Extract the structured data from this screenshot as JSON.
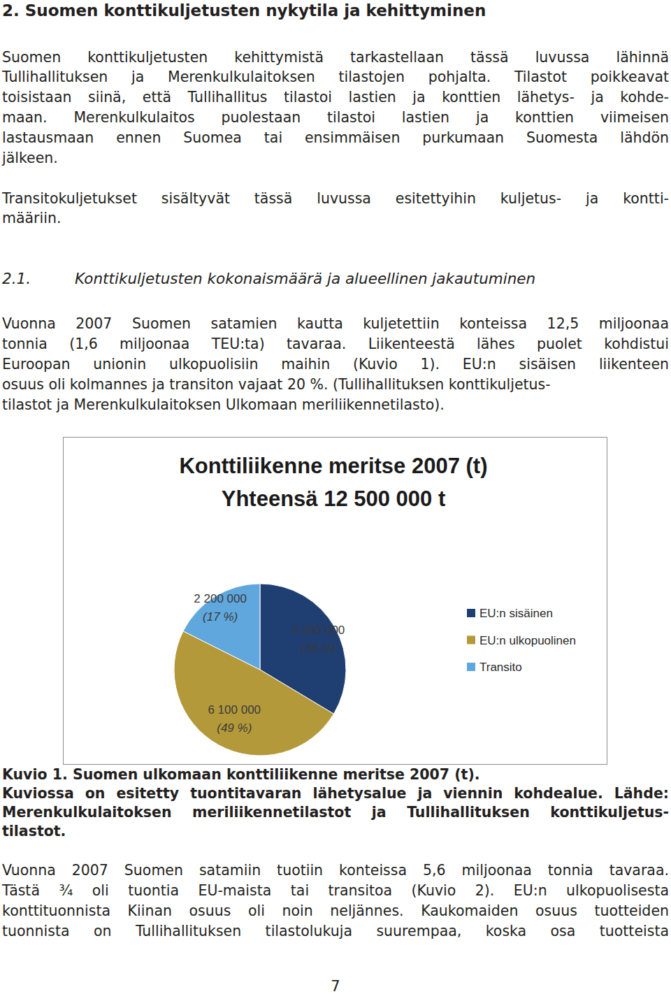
{
  "section_heading": "2. Suomen konttikuljetusten nykytila ja kehittyminen",
  "intro_paragraphs": [
    [
      "Suomen konttikuljetusten kehittymistä tarkastellaan tässä luvussa lähinnä",
      "Tullihallituksen ja Merenkulkulaitoksen tilastojen pohjalta. Tilastot poikkeavat",
      "toisistaan siinä, että Tullihallitus tilastoi lastien ja konttien lähetys- ja kohde-",
      "maan. Merenkulkulaitos puolestaan tilastoi lastien ja konttien viimeisen",
      "lastausmaan ennen Suomea tai ensimmäisen purkumaan Suomesta lähdön",
      "jälkeen."
    ],
    [
      "Transitokuljetukset sisältyvät tässä luvussa esitettyihin kuljetus- ja kontti-",
      "määriin."
    ]
  ],
  "subsection_heading": {
    "number": "2.1.",
    "title": "Konttikuljetusten kokonaismäärä ja alueellinen jakautuminen"
  },
  "paragraph_before_chart": [
    "Vuonna 2007 Suomen satamien kautta kuljetettiin konteissa 12,5 miljoonaa",
    "tonnia (1,6 miljoonaa TEU:ta) tavaraa. Liikenteestä lähes puolet kohdistui",
    "Euroopan unionin ulkopuolisiin maihin (Kuvio 1). EU:n sisäisen liikenteen",
    "osuus oli kolmannes ja transiton vajaat 20 %. (Tullihallituksen konttikuljetus-",
    "tilastot ja Merenkulkulaitoksen Ulkomaan meriliikennetilasto)."
  ],
  "chart_data": {
    "type": "pie",
    "title": "Konttiliikenne meritse 2007 (t)",
    "subtitle": "Yhteensä 12 500 000 t",
    "categories": [
      "EU:n sisäinen",
      "EU:n ulkopuolinen",
      "Transito"
    ],
    "values": [
      4200000,
      6100000,
      2200000
    ],
    "value_labels": [
      "4 200 000",
      "6 100 000",
      "2 200 000"
    ],
    "percents": [
      34,
      49,
      17
    ],
    "percent_labels": [
      "(34 %)",
      "(49 %)",
      "(17 %)"
    ],
    "colors": [
      "#1f3e72",
      "#b4993a",
      "#5fa7dd"
    ],
    "data_labels": true,
    "legend": "right"
  },
  "caption": [
    "Kuvio 1. Suomen ulkomaan konttiliikenne meritse 2007 (t).",
    "Kuviossa on esitetty tuontitavaran lähetysalue ja viennin kohdealue. Lähde:",
    "Merenkulkulaitoksen meriliikennetilastot ja Tullihallituksen konttikuljetus-",
    "tilastot."
  ],
  "paragraph_after_chart": [
    "Vuonna 2007 Suomen satamiin tuotiin konteissa 5,6 miljoonaa tonnia tavaraa.",
    "Tästä ¾ oli tuontia EU-maista tai transitoa (Kuvio 2). EU:n ulkopuolisesta",
    "konttituonnista Kiinan osuus oli noin neljännes. Kaukomaiden osuus tuotteiden",
    "tuonnista on Tullihallituksen tilastolukuja suurempaa, koska osa tuotteista"
  ],
  "page_number": "7"
}
